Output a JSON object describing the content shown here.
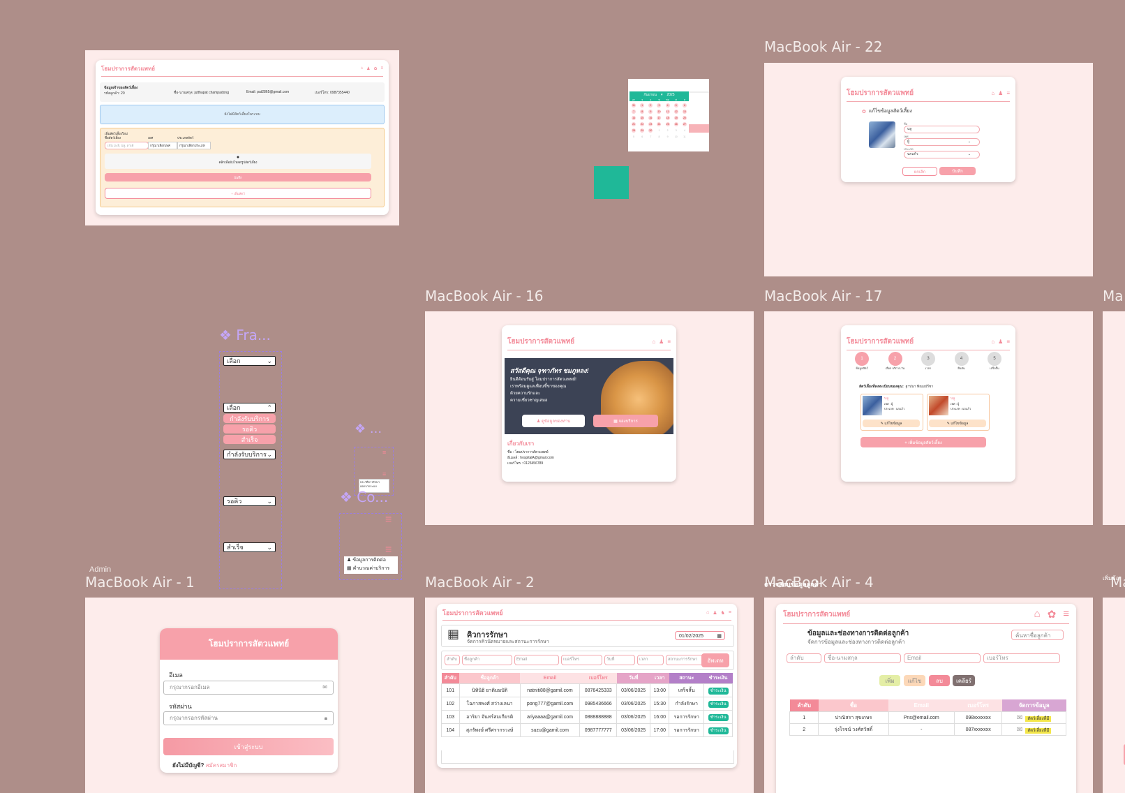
{
  "frames": {
    "f22": "MacBook Air - 22",
    "f16": "MacBook Air - 16",
    "f17": "MacBook Air - 17",
    "f1": "MacBook Air - 1",
    "f2": "MacBook Air - 2",
    "f4": "MacBook Air - 4",
    "f_edge": "Ma",
    "f_edge2": "Ma",
    "admin": "Admin",
    "f4_overlap": "ตรวจสอบข้อมูลลูกค้า",
    "edge_label": "เพิ่มข้อ"
  },
  "brand": "โฮมปราการสัตวแพทย์",
  "top_left": {
    "info_title": "ข้อมูลเจ้าของสัตว์เลี้ยง",
    "customer_no": "รหัสลูกค้า: 20",
    "name": "ชื่อ-นามสกุล: jutthapat champadong",
    "email": "Email: pat2865@gmail.com",
    "phone": "เบอร์โทร: 0987355440",
    "no_pet": "ยังไม่มีสัตว์เลี้ยงในระบบ",
    "add_pet": "เพิ่มสัตว์เลี้ยงใหม่",
    "pet_name": "ชื่อสัตว์เลี้ยง",
    "sex": "เพศ",
    "type": "ประเภทสัตว์",
    "name_ph": "เช่น มะลิ, บลู, ลาเต้",
    "sex_sel": "กรุณาเลือกเพศ",
    "type_sel": "กรุณาเลือกประเภท",
    "upload": "คลิกเพื่ออัปโหลดรูปสัตว์เลี้ยง",
    "save": "บันทึก",
    "add_more": "+ เพิ่มสัตว์"
  },
  "calendar": {
    "month": "กันยายน",
    "year": "2025",
    "weekdays": [
      "อา",
      "จ",
      "อ",
      "พ",
      "พฤ",
      "ศ",
      "ส"
    ],
    "weeks": [
      [
        "31",
        "1",
        "2",
        "3",
        "4",
        "5",
        "6"
      ],
      [
        "7",
        "8",
        "9",
        "10",
        "11",
        "12",
        "13"
      ],
      [
        "14",
        "15",
        "16",
        "17",
        "18",
        "19",
        "20"
      ],
      [
        "21",
        "22",
        "23",
        "24",
        "25",
        "26",
        "27"
      ],
      [
        "28",
        "29",
        "30",
        "1",
        "2",
        "3",
        "4"
      ],
      [
        "5",
        "6",
        "7",
        "8",
        "9",
        "10",
        "11"
      ]
    ]
  },
  "accent_square": "#1fb898",
  "f22": {
    "title": "แก้ไขข้อมูลสัตว์เลี้ยง",
    "name_label": "ชื่อ",
    "name_value": "บลู",
    "sex_label": "เพศ",
    "sex_value": "ผู้",
    "type_label": "ประเภท",
    "type_value": "นกแก้ว",
    "cancel": "ยกเลิก",
    "save": "บันทึก"
  },
  "components": {
    "frame_label": "Fra...",
    "dots_label": "...",
    "co_label": "Co...",
    "select_default": "เลือก",
    "options": [
      "กำลังรับบริการ",
      "รอคิว",
      "สำเร็จ"
    ],
    "sel_active": "กำลังรับบริการ",
    "sel_wait": "รอคิว",
    "sel_done": "สำเร็จ",
    "small_menu": [
      "ประวัติการรักษา",
      "ออกจากระบบ"
    ],
    "menu_items": [
      "ข้อมูลการติดต่อ",
      "คำนวณค่าบริการ"
    ]
  },
  "f16": {
    "greeting": "สวัสดีคุณ จุฑาภัทร ชมภูหลง!",
    "line1": "ยินดีต้อนรับสู่ โฮมปราการสัตวแพทย์!",
    "line2": "เราพร้อมดูแลเพื่อนซี้ขาของคุณ",
    "line3": "ด้วยความรักและ",
    "line4": "ความเชี่ยวชาญเสมอ",
    "btn_profile": "ดูข้อมูลของท่าน",
    "btn_book": "จองบริการ",
    "about": "เกี่ยวกับเรา",
    "about_name": "ชื่อ : โฮมปราการสัตวแพทย์",
    "about_email": "อีเมลล์ : hospitalA@gmail.com",
    "about_phone": "เบอร์โทร : 0123456789"
  },
  "f17": {
    "steps": [
      {
        "n": "1",
        "label": "ข้อมูลสัตว์"
      },
      {
        "n": "2",
        "label": "เลือก บริการ-วัน"
      },
      {
        "n": "3",
        "label": "เวลา"
      },
      {
        "n": "4",
        "label": "ยืนยัน"
      },
      {
        "n": "5",
        "label": "เสร็จสิ้น"
      }
    ],
    "pets_title": "สัตว์เลี้ยงที่ลงทะเบียนของคุณ:",
    "owner": "ฐาปนา พิณมปรีชา",
    "pet1_name": "บลู",
    "pet1_sex": "เพศ : ผู้",
    "pet1_type": "ประเภท : นกแก้ว",
    "pet2_name": "บลู",
    "pet2_sex": "เพศ : ผู้",
    "pet2_type": "ประเภท : นกแก้ว",
    "edit": "แก้ไขข้อมูล",
    "add": "+ เพิ่มข้อมูลสัตว์เลี้ยง"
  },
  "f1": {
    "title": "โฮมปราการสัตวแพทย์",
    "email_label": "อีเมล",
    "email_ph": "กรุณากรอกอีเมล",
    "pass_label": "รหัสผ่าน",
    "pass_ph": "กรุณากรอกรหัสผ่าน",
    "login": "เข้าสู่ระบบ",
    "no_account": "ยังไม่มีบัญชี?",
    "register": "สมัครสมาชิก"
  },
  "f2": {
    "title": "คิวการรักษา",
    "subtitle": "จัดการคิวนัดหมายและสถานะการรักษา",
    "date": "01/02/2025",
    "inputs": [
      "ลำดับ",
      "ชื่อลูกค้า",
      "Email",
      "เบอร์โทร",
      "วันที่",
      "เวลา",
      "สถานะการรักษา"
    ],
    "update": "อัพเดท",
    "headers": [
      "ลำดับ",
      "ชื่อลูกค้า",
      "Email",
      "เบอร์โทร",
      "วันที่",
      "เวลา",
      "สถานะ",
      "ชำระเงิน"
    ],
    "rows": [
      [
        "101",
        "นิทินิธิ ยาติมมบัติ",
        "natniti88@gamil.com",
        "0876425333",
        "03/06/2025",
        "13:00",
        "เสร็จสิ้น",
        "ชำระเงิน"
      ],
      [
        "102",
        "โอภาสพงศ์ สว่างเลนา",
        "pong777@gamil.com",
        "0985436666",
        "03/06/2025",
        "15:30",
        "กำลังรักษา",
        "ชำระเงิน"
      ],
      [
        "103",
        "อาริยา จันทร์สมเกียรติ",
        "ariyaaaa@gamil.com",
        "0888888888",
        "03/06/2025",
        "16:00",
        "รอการรักษา",
        "ชำระเงิน"
      ],
      [
        "104",
        "สุภรัพงษ์ ศรีศรากรวงษ์",
        "suzu@gamil.com",
        "0987777777",
        "03/06/2025",
        "17:00",
        "รอการรักษา",
        "ชำระเงิน"
      ]
    ]
  },
  "f4": {
    "title": "ข้อมูลและช่องทางการติดต่อลูกค้า",
    "subtitle": "จัดการข้อมูลและช่องทางการติดต่อลูกค้า",
    "search_ph": "ค้นหาชื่อลูกค้า",
    "inputs": [
      "ลำดับ",
      "ชื่อ-นามสกุล",
      "Email",
      "เบอร์โทร"
    ],
    "btn_add": "เพิ่ม",
    "btn_edit": "แก้ไข",
    "btn_del": "ลบ",
    "btn_clear": "เคลียร์",
    "headers": [
      "ลำดับ",
      "ชื่อ",
      "Email",
      "เบอร์โทร",
      "จัดการข้อมูล"
    ],
    "rows": [
      [
        "1",
        "ปาณิสรา สุขเกษร",
        "Pns@email.com",
        "098xxxxxxx",
        "สัตว์เลี้ยงที่มี"
      ],
      [
        "2",
        "รุ่งโรจน์ วงศ์สวัสดิ์",
        "-",
        "087xxxxxxx",
        "สัตว์เลี้ยงที่มี"
      ]
    ]
  }
}
